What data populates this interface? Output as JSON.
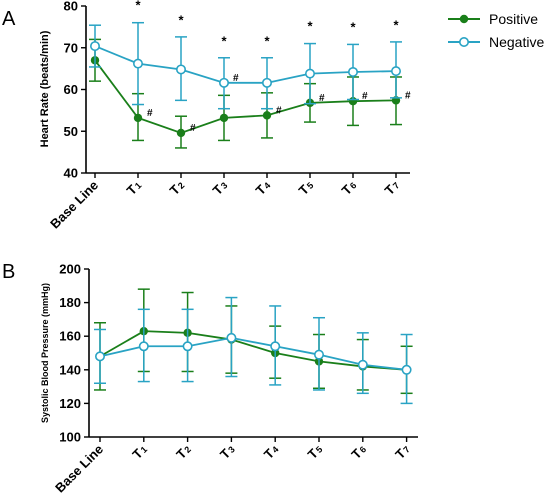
{
  "legend": [
    {
      "name": "Positive",
      "color": "#1a7f1a",
      "marker": "filled-circle"
    },
    {
      "name": "Negative",
      "color": "#29a3c4",
      "marker": "open-circle"
    }
  ],
  "chart_data": [
    {
      "type": "line",
      "panel_label": "A",
      "title": "",
      "xlabel": "",
      "ylabel": "Heart Rate (beats/min)",
      "ylim": [
        40,
        80
      ],
      "yticks": [
        "40",
        "50",
        "60",
        "70",
        "80"
      ],
      "categories": [
        {
          "main": "Base Line",
          "sub": ""
        },
        {
          "main": "T",
          "sub": "1"
        },
        {
          "main": "T",
          "sub": "2"
        },
        {
          "main": "T",
          "sub": "3"
        },
        {
          "main": "T",
          "sub": "4"
        },
        {
          "main": "T",
          "sub": "5"
        },
        {
          "main": "T",
          "sub": "6"
        },
        {
          "main": "T",
          "sub": "7"
        }
      ],
      "series": [
        {
          "name": "Positive",
          "color": "#1a7f1a",
          "marker": "filled",
          "values": [
            67,
            53.2,
            49.6,
            53.2,
            53.8,
            56.8,
            57.2,
            57.4
          ],
          "err_low": [
            62,
            47.8,
            46,
            47.8,
            48.4,
            52.2,
            51.4,
            51.6
          ],
          "err_high": [
            72,
            59,
            53.6,
            58.6,
            59.2,
            61.4,
            63,
            63
          ]
        },
        {
          "name": "Negative",
          "color": "#29a3c4",
          "marker": "open",
          "values": [
            70.4,
            66.2,
            64.8,
            61.6,
            61.6,
            63.8,
            64.2,
            64.4
          ],
          "err_low": [
            65.4,
            56.4,
            57.4,
            55.4,
            55.4,
            56.6,
            57.6,
            58
          ],
          "err_high": [
            75.4,
            76,
            72.6,
            67.6,
            67.6,
            71,
            70.8,
            71.4
          ]
        }
      ],
      "annotations": [
        {
          "x": 1,
          "text": "*",
          "y": 78.5
        },
        {
          "x": 2,
          "text": "*",
          "y": 74.8
        },
        {
          "x": 3,
          "text": "*",
          "y": 69.8
        },
        {
          "x": 4,
          "text": "*",
          "y": 69.8
        },
        {
          "x": 5,
          "text": "*",
          "y": 73.4
        },
        {
          "x": 6,
          "text": "*",
          "y": 73.2
        },
        {
          "x": 7,
          "text": "*",
          "y": 73.6
        },
        {
          "x": 1,
          "text": "#",
          "y": 53.2
        },
        {
          "x": 2,
          "text": "#",
          "y": 49.6
        },
        {
          "x": 3,
          "text": "#",
          "y": 61.6
        },
        {
          "x": 4,
          "text": "#",
          "y": 53.8
        },
        {
          "x": 5,
          "text": "#",
          "y": 56.8
        },
        {
          "x": 6,
          "text": "#",
          "y": 57.2
        },
        {
          "x": 7,
          "text": "#",
          "y": 57.4
        }
      ],
      "grid": false
    },
    {
      "type": "line",
      "panel_label": "B",
      "title": "",
      "xlabel": "",
      "ylabel": "Systolic Blood Pressure (mmHg)",
      "ylim": [
        100,
        200
      ],
      "yticks": [
        "100",
        "120",
        "140",
        "160",
        "180",
        "200"
      ],
      "categories": [
        {
          "main": "Base Line",
          "sub": ""
        },
        {
          "main": "T",
          "sub": "1"
        },
        {
          "main": "T",
          "sub": "2"
        },
        {
          "main": "T",
          "sub": "3"
        },
        {
          "main": "T",
          "sub": "4"
        },
        {
          "main": "T",
          "sub": "5"
        },
        {
          "main": "T",
          "sub": "6"
        },
        {
          "main": "T",
          "sub": "7"
        }
      ],
      "series": [
        {
          "name": "Positive",
          "color": "#1a7f1a",
          "marker": "filled",
          "values": [
            148,
            163,
            162,
            158,
            150,
            145,
            142,
            140
          ],
          "err_low": [
            128,
            139,
            139,
            138,
            135,
            129,
            128,
            126
          ],
          "err_high": [
            168,
            188,
            186,
            178,
            166,
            161,
            158,
            154
          ]
        },
        {
          "name": "Negative",
          "color": "#29a3c4",
          "marker": "open",
          "values": [
            148,
            154,
            154,
            159,
            154,
            149,
            143,
            140
          ],
          "err_low": [
            132,
            133,
            133,
            136,
            131,
            128,
            126,
            120
          ],
          "err_high": [
            164,
            176,
            176,
            183,
            178,
            171,
            162,
            161
          ]
        }
      ],
      "annotations": [],
      "grid": false
    }
  ]
}
